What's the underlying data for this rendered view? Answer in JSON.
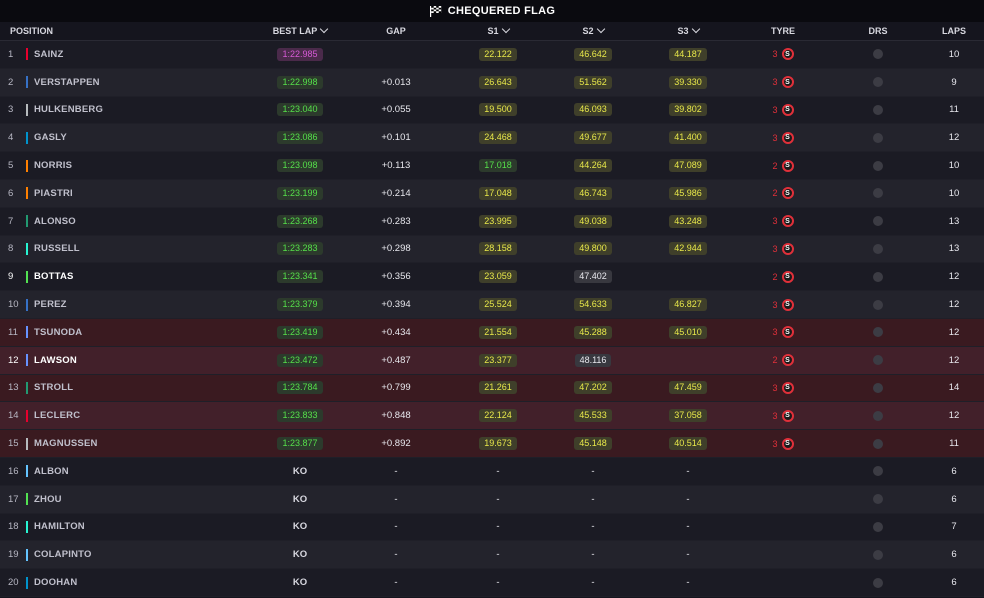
{
  "title": "CHEQUERED FLAG",
  "headers": {
    "position": "POSITION",
    "best_lap": "BEST LAP",
    "gap": "GAP",
    "s1": "S1",
    "s2": "S2",
    "s3": "S3",
    "tyre": "TYRE",
    "drs": "DRS",
    "laps": "LAPS"
  },
  "rows": [
    {
      "pos": "1",
      "name": "SAINZ",
      "color": "#e8002d",
      "best": "1:22.985",
      "best_style": "purple",
      "gap": "",
      "s1": "22.122",
      "s1_style": "yellow",
      "s2": "46.642",
      "s2_style": "yellow",
      "s3": "44.187",
      "s3_style": "yellow",
      "tyre_count": "3",
      "tyre": "S",
      "laps": "10",
      "bg": "bg-a",
      "hl": false
    },
    {
      "pos": "2",
      "name": "VERSTAPPEN",
      "color": "#3671c6",
      "best": "1:22.998",
      "best_style": "green",
      "gap": "+0.013",
      "s1": "26.643",
      "s1_style": "yellow",
      "s2": "51.562",
      "s2_style": "yellow",
      "s3": "39.330",
      "s3_style": "yellow",
      "tyre_count": "3",
      "tyre": "S",
      "laps": "9",
      "bg": "bg-b",
      "hl": false
    },
    {
      "pos": "3",
      "name": "HULKENBERG",
      "color": "#b6babd",
      "best": "1:23.040",
      "best_style": "green",
      "gap": "+0.055",
      "s1": "19.500",
      "s1_style": "yellow",
      "s2": "46.093",
      "s2_style": "yellow",
      "s3": "39.802",
      "s3_style": "yellow",
      "tyre_count": "3",
      "tyre": "S",
      "laps": "11",
      "bg": "bg-a",
      "hl": false
    },
    {
      "pos": "4",
      "name": "GASLY",
      "color": "#0093cc",
      "best": "1:23.086",
      "best_style": "green",
      "gap": "+0.101",
      "s1": "24.468",
      "s1_style": "yellow",
      "s2": "49.677",
      "s2_style": "yellow",
      "s3": "41.400",
      "s3_style": "yellow",
      "tyre_count": "3",
      "tyre": "S",
      "laps": "12",
      "bg": "bg-b",
      "hl": false
    },
    {
      "pos": "5",
      "name": "NORRIS",
      "color": "#ff8000",
      "best": "1:23.098",
      "best_style": "green",
      "gap": "+0.113",
      "s1": "17.018",
      "s1_style": "green",
      "s2": "44.264",
      "s2_style": "yellow",
      "s3": "47.089",
      "s3_style": "yellow",
      "tyre_count": "2",
      "tyre": "S",
      "laps": "10",
      "bg": "bg-a",
      "hl": false
    },
    {
      "pos": "6",
      "name": "PIASTRI",
      "color": "#ff8000",
      "best": "1:23.199",
      "best_style": "green",
      "gap": "+0.214",
      "s1": "17.048",
      "s1_style": "yellow",
      "s2": "46.743",
      "s2_style": "yellow",
      "s3": "45.986",
      "s3_style": "yellow",
      "tyre_count": "2",
      "tyre": "S",
      "laps": "10",
      "bg": "bg-b",
      "hl": false
    },
    {
      "pos": "7",
      "name": "ALONSO",
      "color": "#229971",
      "best": "1:23.268",
      "best_style": "green",
      "gap": "+0.283",
      "s1": "23.995",
      "s1_style": "yellow",
      "s2": "49.038",
      "s2_style": "yellow",
      "s3": "43.248",
      "s3_style": "yellow",
      "tyre_count": "3",
      "tyre": "S",
      "laps": "13",
      "bg": "bg-a",
      "hl": false
    },
    {
      "pos": "8",
      "name": "RUSSELL",
      "color": "#27f4d2",
      "best": "1:23.283",
      "best_style": "green",
      "gap": "+0.298",
      "s1": "28.158",
      "s1_style": "yellow",
      "s2": "49.800",
      "s2_style": "yellow",
      "s3": "42.944",
      "s3_style": "yellow",
      "tyre_count": "3",
      "tyre": "S",
      "laps": "13",
      "bg": "bg-b",
      "hl": false
    },
    {
      "pos": "9",
      "name": "BOTTAS",
      "color": "#52e252",
      "best": "1:23.341",
      "best_style": "green",
      "gap": "+0.356",
      "s1": "23.059",
      "s1_style": "yellow",
      "s2": "47.402",
      "s2_style": "white",
      "s3": "",
      "s3_style": "",
      "tyre_count": "2",
      "tyre": "S",
      "laps": "12",
      "bg": "bg-a",
      "hl": true
    },
    {
      "pos": "10",
      "name": "PEREZ",
      "color": "#3671c6",
      "best": "1:23.379",
      "best_style": "green",
      "gap": "+0.394",
      "s1": "25.524",
      "s1_style": "yellow",
      "s2": "54.633",
      "s2_style": "yellow",
      "s3": "46.827",
      "s3_style": "yellow",
      "tyre_count": "3",
      "tyre": "S",
      "laps": "12",
      "bg": "bg-b",
      "hl": false
    },
    {
      "pos": "11",
      "name": "TSUNODA",
      "color": "#6692ff",
      "best": "1:23.419",
      "best_style": "green",
      "gap": "+0.434",
      "s1": "21.554",
      "s1_style": "yellow",
      "s2": "45.288",
      "s2_style": "yellow",
      "s3": "45.010",
      "s3_style": "yellow",
      "tyre_count": "3",
      "tyre": "S",
      "laps": "12",
      "bg": "bg-red-a",
      "hl": false
    },
    {
      "pos": "12",
      "name": "LAWSON",
      "color": "#6692ff",
      "best": "1:23.472",
      "best_style": "green",
      "gap": "+0.487",
      "s1": "23.377",
      "s1_style": "yellow",
      "s2": "48.116",
      "s2_style": "white",
      "s3": "",
      "s3_style": "",
      "tyre_count": "2",
      "tyre": "S",
      "laps": "12",
      "bg": "bg-red-b",
      "hl": true
    },
    {
      "pos": "13",
      "name": "STROLL",
      "color": "#229971",
      "best": "1:23.784",
      "best_style": "green",
      "gap": "+0.799",
      "s1": "21.261",
      "s1_style": "yellow",
      "s2": "47.202",
      "s2_style": "yellow",
      "s3": "47.459",
      "s3_style": "yellow",
      "tyre_count": "3",
      "tyre": "S",
      "laps": "14",
      "bg": "bg-red-a",
      "hl": false
    },
    {
      "pos": "14",
      "name": "LECLERC",
      "color": "#e8002d",
      "best": "1:23.833",
      "best_style": "green",
      "gap": "+0.848",
      "s1": "22.124",
      "s1_style": "yellow",
      "s2": "45.533",
      "s2_style": "yellow",
      "s3": "37.058",
      "s3_style": "yellow",
      "tyre_count": "3",
      "tyre": "S",
      "laps": "12",
      "bg": "bg-red-b",
      "hl": false
    },
    {
      "pos": "15",
      "name": "MAGNUSSEN",
      "color": "#b6babd",
      "best": "1:23.877",
      "best_style": "green",
      "gap": "+0.892",
      "s1": "19.673",
      "s1_style": "yellow",
      "s2": "45.148",
      "s2_style": "yellow",
      "s3": "40.514",
      "s3_style": "yellow",
      "tyre_count": "3",
      "tyre": "S",
      "laps": "11",
      "bg": "bg-red-a",
      "hl": false
    },
    {
      "pos": "16",
      "name": "ALBON",
      "color": "#64c4ff",
      "best": "KO",
      "best_style": "ko",
      "gap": "-",
      "s1": "-",
      "s1_style": "plain",
      "s2": "-",
      "s2_style": "plain",
      "s3": "-",
      "s3_style": "plain",
      "tyre_count": "",
      "tyre": "",
      "laps": "6",
      "bg": "bg-a",
      "hl": false
    },
    {
      "pos": "17",
      "name": "ZHOU",
      "color": "#52e252",
      "best": "KO",
      "best_style": "ko",
      "gap": "-",
      "s1": "-",
      "s1_style": "plain",
      "s2": "-",
      "s2_style": "plain",
      "s3": "-",
      "s3_style": "plain",
      "tyre_count": "",
      "tyre": "",
      "laps": "6",
      "bg": "bg-b",
      "hl": false
    },
    {
      "pos": "18",
      "name": "HAMILTON",
      "color": "#27f4d2",
      "best": "KO",
      "best_style": "ko",
      "gap": "-",
      "s1": "-",
      "s1_style": "plain",
      "s2": "-",
      "s2_style": "plain",
      "s3": "-",
      "s3_style": "plain",
      "tyre_count": "",
      "tyre": "",
      "laps": "7",
      "bg": "bg-a",
      "hl": false
    },
    {
      "pos": "19",
      "name": "COLAPINTO",
      "color": "#64c4ff",
      "best": "KO",
      "best_style": "ko",
      "gap": "-",
      "s1": "-",
      "s1_style": "plain",
      "s2": "-",
      "s2_style": "plain",
      "s3": "-",
      "s3_style": "plain",
      "tyre_count": "",
      "tyre": "",
      "laps": "6",
      "bg": "bg-b",
      "hl": false
    },
    {
      "pos": "20",
      "name": "DOOHAN",
      "color": "#0093cc",
      "best": "KO",
      "best_style": "ko",
      "gap": "-",
      "s1": "-",
      "s1_style": "plain",
      "s2": "-",
      "s2_style": "plain",
      "s3": "-",
      "s3_style": "plain",
      "tyre_count": "",
      "tyre": "",
      "laps": "6",
      "bg": "bg-a",
      "hl": false
    }
  ]
}
